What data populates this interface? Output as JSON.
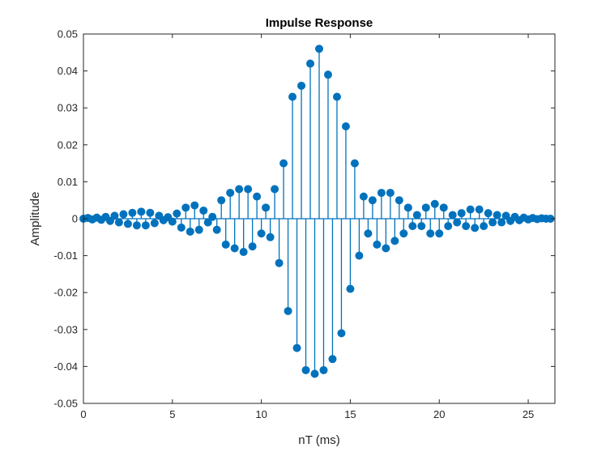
{
  "chart_data": {
    "type": "stem",
    "title": "Impulse Response",
    "xlabel": "nT (ms)",
    "ylabel": "Amplitude",
    "xlim": [
      0,
      26.5
    ],
    "ylim": [
      -0.05,
      0.05
    ],
    "xticks": [
      0,
      5,
      10,
      15,
      20,
      25
    ],
    "yticks": [
      -0.05,
      -0.04,
      -0.03,
      -0.02,
      -0.01,
      0,
      0.01,
      0.02,
      0.03,
      0.04,
      0.05
    ],
    "xtick_labels": [
      "0",
      "5",
      "10",
      "15",
      "20",
      "25"
    ],
    "ytick_labels": [
      "-0.05",
      "-0.04",
      "-0.03",
      "-0.02",
      "-0.01",
      "0",
      "0.01",
      "0.02",
      "0.03",
      "0.04",
      "0.05"
    ],
    "grid": false,
    "series": [
      {
        "color": "#0072BD",
        "x": [
          0,
          0.25,
          0.5,
          0.75,
          1,
          1.25,
          1.5,
          1.75,
          2,
          2.25,
          2.5,
          2.75,
          3,
          3.25,
          3.5,
          3.75,
          4,
          4.25,
          4.5,
          4.75,
          5,
          5.25,
          5.5,
          5.75,
          6,
          6.25,
          6.5,
          6.75,
          7,
          7.25,
          7.5,
          7.75,
          8,
          8.25,
          8.5,
          8.75,
          9,
          9.25,
          9.5,
          9.75,
          10,
          10.25,
          10.5,
          10.75,
          11,
          11.25,
          11.5,
          11.75,
          12,
          12.25,
          12.5,
          12.75,
          13,
          13.25,
          13.5,
          13.75,
          14,
          14.25,
          14.5,
          14.75,
          15,
          15.25,
          15.5,
          15.75,
          16,
          16.25,
          16.5,
          16.75,
          17,
          17.25,
          17.5,
          17.75,
          18,
          18.25,
          18.5,
          18.75,
          19,
          19.25,
          19.5,
          19.75,
          20,
          20.25,
          20.5,
          20.75,
          21,
          21.25,
          21.5,
          21.75,
          22,
          22.25,
          22.5,
          22.75,
          23,
          23.25,
          23.5,
          23.75,
          24,
          24.25,
          24.5,
          24.75,
          25,
          25.25,
          25.5,
          25.75,
          26,
          26.25
        ],
        "y": [
          0,
          0.0002,
          -0.0002,
          0.0003,
          -0.0003,
          0.0005,
          -0.0006,
          0.0008,
          -0.001,
          0.0012,
          -0.0014,
          0.0016,
          -0.0018,
          0.0019,
          -0.0018,
          0.0016,
          -0.0012,
          0.0008,
          -0.0004,
          0.0004,
          -0.0008,
          0.0014,
          -0.0024,
          0.003,
          -0.0035,
          0.0036,
          -0.003,
          0.0022,
          -0.001,
          0.0005,
          -0.003,
          0.005,
          -0.007,
          0.007,
          -0.008,
          0.008,
          -0.009,
          0.008,
          -0.0075,
          0.006,
          -0.004,
          0.003,
          -0.005,
          0.008,
          -0.012,
          0.015,
          -0.025,
          0.033,
          -0.035,
          0.036,
          -0.041,
          0.042,
          -0.042,
          0.046,
          -0.041,
          0.039,
          -0.038,
          0.033,
          -0.031,
          0.025,
          -0.019,
          0.015,
          -0.01,
          0.006,
          -0.004,
          0.005,
          -0.007,
          0.007,
          -0.008,
          0.007,
          -0.006,
          0.005,
          -0.004,
          0.003,
          -0.002,
          0.001,
          -0.002,
          0.003,
          -0.004,
          0.004,
          -0.004,
          0.003,
          -0.002,
          0.001,
          -0.001,
          0.0015,
          -0.002,
          0.0025,
          -0.0025,
          0.0025,
          -0.002,
          0.0015,
          -0.001,
          0.001,
          -0.001,
          0.0008,
          -0.0006,
          0.0005,
          -0.0004,
          0.0003,
          -0.0002,
          0.0002,
          -0.0001,
          0.0001,
          0,
          0
        ]
      }
    ]
  }
}
